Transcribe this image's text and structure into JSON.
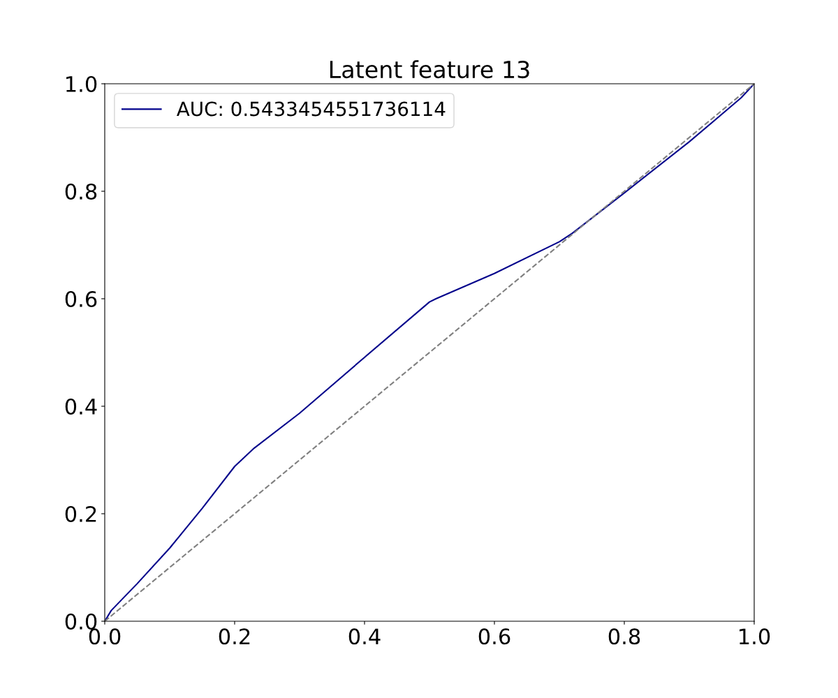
{
  "chart_data": {
    "type": "line",
    "title": "Latent feature 13",
    "xlim": [
      0.0,
      1.0
    ],
    "ylim": [
      0.0,
      1.0
    ],
    "xticks": [
      {
        "value": 0,
        "label": "0.0"
      },
      0.2,
      0.4,
      0.6,
      0.8,
      {
        "value": 1,
        "label": "1.0"
      }
    ],
    "yticks": [
      {
        "value": 0,
        "label": "0.0"
      },
      0.2,
      0.4,
      0.6,
      0.8,
      {
        "value": 1,
        "label": "1.0"
      }
    ],
    "grid": false,
    "legend": "top left",
    "series": [
      {
        "name": "AUC: 0.5433454551736114",
        "color": "#00008b",
        "line_style": "solid",
        "x": [
          0,
          0.01,
          0.05,
          0.1,
          0.15,
          0.2,
          0.23,
          0.3,
          0.4,
          0.5,
          0.51,
          0.6,
          0.7,
          0.72,
          0.8,
          0.9,
          0.98,
          1.0
        ],
        "values": [
          0,
          0.02,
          0.07,
          0.136,
          0.21,
          0.288,
          0.322,
          0.387,
          0.491,
          0.594,
          0.6,
          0.647,
          0.706,
          0.722,
          0.797,
          0.892,
          0.974,
          1.0
        ]
      },
      {
        "color": "#808080",
        "line_style": "dashed",
        "x": [
          0,
          1
        ],
        "values": [
          0,
          1
        ]
      }
    ]
  }
}
